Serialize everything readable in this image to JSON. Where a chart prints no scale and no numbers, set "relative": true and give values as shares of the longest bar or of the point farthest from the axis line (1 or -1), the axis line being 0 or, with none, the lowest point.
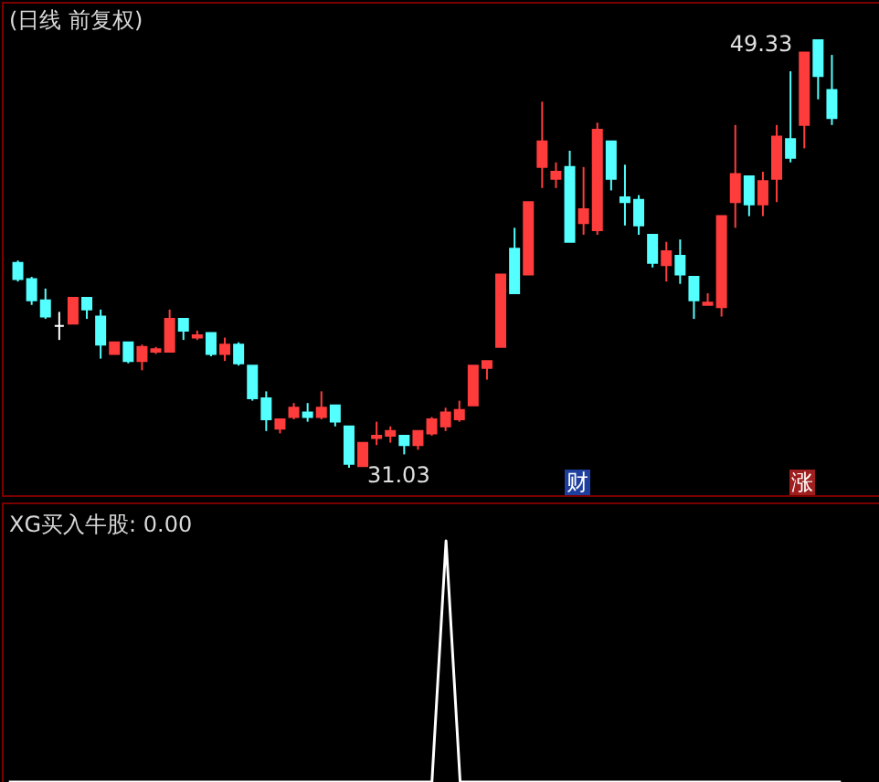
{
  "chart_data": [
    {
      "type": "candlestick",
      "title": "(日线 前复权)",
      "categories": [
        null,
        null,
        null,
        null,
        null,
        null,
        null,
        null,
        null,
        null,
        null,
        null,
        null,
        null,
        null,
        null,
        null,
        null,
        null,
        null,
        null,
        null,
        null,
        null,
        null,
        null,
        null,
        null,
        null,
        null,
        null,
        null,
        null,
        null,
        null,
        null,
        null,
        null,
        null,
        null,
        null,
        null,
        null,
        null,
        null,
        null,
        null,
        null,
        null,
        null,
        null,
        null,
        null,
        null,
        null,
        null,
        null,
        null,
        null,
        null
      ],
      "ohlc": [
        [
          39.8,
          39.9,
          39.0,
          39.1
        ],
        [
          39.1,
          39.2,
          38.0,
          38.2
        ],
        [
          38.2,
          38.7,
          37.4,
          37.5
        ],
        [
          37.1,
          37.7,
          36.5,
          37.1
        ],
        [
          37.2,
          38.3,
          37.2,
          38.3
        ],
        [
          38.3,
          38.3,
          37.4,
          37.8
        ],
        [
          37.5,
          37.8,
          35.7,
          36.3
        ],
        [
          35.9,
          36.4,
          35.9,
          36.4
        ],
        [
          36.4,
          36.4,
          35.5,
          35.6
        ],
        [
          35.6,
          36.3,
          35.2,
          36.2
        ],
        [
          36.0,
          36.2,
          35.9,
          36.1
        ],
        [
          36.0,
          37.8,
          36.0,
          37.4
        ],
        [
          37.4,
          37.4,
          36.5,
          36.9
        ],
        [
          36.6,
          36.9,
          36.5,
          36.7
        ],
        [
          36.8,
          36.8,
          35.8,
          35.9
        ],
        [
          35.9,
          36.6,
          35.6,
          36.3
        ],
        [
          36.3,
          36.4,
          35.4,
          35.5
        ],
        [
          35.4,
          35.4,
          33.9,
          34.0
        ],
        [
          34.0,
          34.3,
          32.6,
          33.1
        ],
        [
          32.7,
          33.1,
          32.5,
          33.1
        ],
        [
          33.2,
          33.8,
          33.1,
          33.6
        ],
        [
          33.4,
          33.8,
          33.0,
          33.2
        ],
        [
          33.2,
          34.3,
          33.1,
          33.6
        ],
        [
          33.7,
          33.7,
          32.8,
          33.0
        ],
        [
          32.8,
          32.8,
          31.03,
          31.2
        ],
        [
          31.1,
          32.1,
          31.1,
          32.1
        ],
        [
          32.3,
          33.0,
          32.0,
          32.4
        ],
        [
          32.4,
          32.8,
          32.1,
          32.6
        ],
        [
          32.4,
          32.4,
          31.6,
          32.0
        ],
        [
          32.0,
          32.6,
          31.8,
          32.6
        ],
        [
          32.5,
          33.2,
          32.4,
          33.1
        ],
        [
          32.8,
          33.6,
          32.6,
          33.4
        ],
        [
          33.1,
          33.9,
          33.0,
          33.5
        ],
        [
          33.7,
          35.4,
          33.7,
          35.4
        ],
        [
          35.3,
          35.6,
          34.8,
          35.6
        ],
        [
          36.2,
          39.3,
          36.2,
          39.3
        ],
        [
          40.4,
          41.3,
          38.5,
          38.5
        ],
        [
          39.3,
          42.4,
          39.3,
          42.4
        ],
        [
          43.9,
          46.7,
          43.0,
          45.0
        ],
        [
          43.4,
          44.1,
          43.0,
          43.7
        ],
        [
          43.9,
          44.6,
          40.7,
          40.7
        ],
        [
          41.5,
          43.9,
          41.0,
          42.1
        ],
        [
          41.2,
          45.8,
          41.0,
          45.5
        ],
        [
          45.0,
          45.0,
          42.9,
          43.4
        ],
        [
          42.6,
          44.0,
          41.4,
          42.4
        ],
        [
          42.5,
          42.7,
          41.0,
          41.4
        ],
        [
          41.0,
          41.0,
          39.6,
          39.8
        ],
        [
          39.7,
          40.7,
          39.0,
          40.3
        ],
        [
          40.1,
          40.8,
          38.9,
          39.3
        ],
        [
          39.2,
          39.2,
          37.4,
          38.2
        ],
        [
          38.0,
          38.5,
          38.0,
          38.1
        ],
        [
          37.9,
          41.8,
          37.5,
          41.8
        ],
        [
          42.4,
          45.7,
          41.3,
          43.6
        ],
        [
          43.5,
          43.5,
          41.8,
          42.3
        ],
        [
          42.3,
          43.7,
          41.8,
          43.3
        ],
        [
          43.4,
          45.7,
          42.4,
          45.2
        ],
        [
          45.1,
          48.0,
          44.1,
          44.3
        ],
        [
          45.7,
          48.8,
          44.7,
          48.8
        ],
        [
          49.33,
          49.33,
          46.8,
          47.8
        ],
        [
          47.2,
          48.7,
          45.7,
          46.0
        ]
      ],
      "colors": [
        "#54ffff",
        "#54ffff",
        "#54ffff",
        "#ffffff",
        "#ff3c3c",
        "#54ffff",
        "#54ffff",
        "#ff3c3c",
        "#54ffff",
        "#ff3c3c",
        "#ff3c3c",
        "#ff3c3c",
        "#54ffff",
        "#ff3c3c",
        "#54ffff",
        "#ff3c3c",
        "#54ffff",
        "#54ffff",
        "#54ffff",
        "#ff3c3c",
        "#ff3c3c",
        "#54ffff",
        "#ff3c3c",
        "#54ffff",
        "#54ffff",
        "#ff3c3c",
        "#ff3c3c",
        "#ff3c3c",
        "#54ffff",
        "#ff3c3c",
        "#ff3c3c",
        "#ff3c3c",
        "#ff3c3c",
        "#ff3c3c",
        "#ff3c3c",
        "#ff3c3c",
        "#54ffff",
        "#ff3c3c",
        "#ff3c3c",
        "#ff3c3c",
        "#54ffff",
        "#ff3c3c",
        "#ff3c3c",
        "#54ffff",
        "#54ffff",
        "#54ffff",
        "#54ffff",
        "#ff3c3c",
        "#54ffff",
        "#54ffff",
        "#ff3c3c",
        "#ff3c3c",
        "#ff3c3c",
        "#54ffff",
        "#ff3c3c",
        "#ff3c3c",
        "#54ffff",
        "#ff3c3c",
        "#54ffff",
        "#54ffff"
      ],
      "annotations": [
        "49.33",
        "31.03",
        "财",
        "涨"
      ]
    },
    {
      "type": "line",
      "title": "XG买入牛股: 0.00",
      "relative": true,
      "color": "#ffffff",
      "categories": [
        null,
        null,
        null,
        null,
        null,
        null,
        null,
        null,
        null,
        null,
        null,
        null,
        null,
        null,
        null,
        null,
        null,
        null,
        null,
        null,
        null,
        null,
        null,
        null,
        null,
        null,
        null,
        null,
        null,
        null,
        null,
        null,
        null,
        null,
        null,
        null,
        null,
        null,
        null,
        null,
        null,
        null,
        null,
        null,
        null,
        null,
        null,
        null,
        null,
        null,
        null,
        null,
        null,
        null,
        null,
        null,
        null,
        null,
        null,
        null
      ],
      "values": [
        0,
        0,
        0,
        0,
        0,
        0,
        0,
        0,
        0,
        0,
        0,
        0,
        0,
        0,
        0,
        0,
        0,
        0,
        0,
        0,
        0,
        0,
        0,
        0,
        0,
        0,
        0,
        0,
        0,
        0,
        0,
        1,
        0,
        0,
        0,
        0,
        0,
        0,
        0,
        0,
        0,
        0,
        0,
        0,
        0,
        0,
        0,
        0,
        0,
        0,
        0,
        0,
        0,
        0,
        0,
        0,
        0,
        0,
        0,
        0
      ]
    }
  ]
}
